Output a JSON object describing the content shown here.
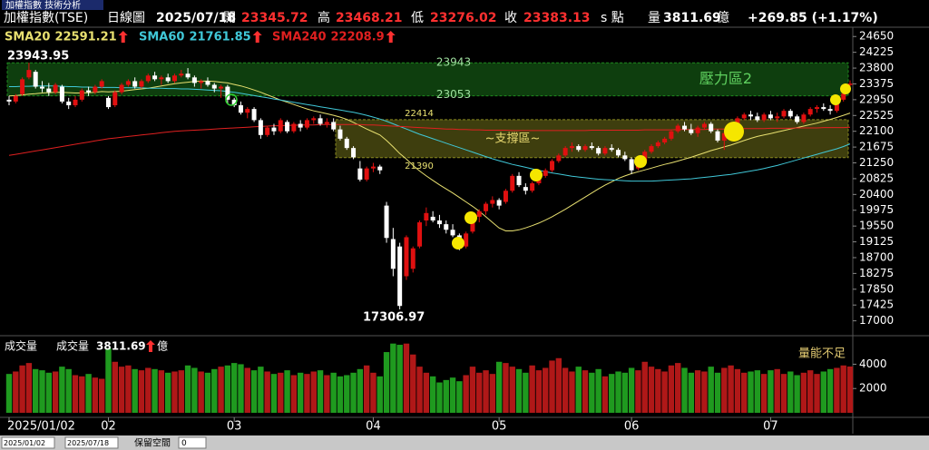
{
  "tab": "加權指數 技術分析",
  "toolbar": {
    "start": "2025/01/02",
    "end": "2025/07/18",
    "label": "保留空間",
    "value": 0
  },
  "chart_data": {
    "type": "candlestick",
    "title": "加權指數(TSE)",
    "period": "日線圖",
    "date": "2025/07/18",
    "header": {
      "open_label": "開",
      "high_label": "高",
      "low_label": "低",
      "close_label": "收",
      "unit": "s 點",
      "volume_label": "量",
      "change": "+269.85 (+1.17%)"
    },
    "up_color": "#e01010",
    "down_color": "#ffffff",
    "categories": [
      "2025/01/02",
      null,
      null,
      null,
      null,
      null,
      null,
      null,
      null,
      null,
      null,
      null,
      null,
      null,
      null,
      "02",
      null,
      null,
      null,
      null,
      null,
      null,
      null,
      null,
      null,
      null,
      null,
      null,
      null,
      null,
      null,
      null,
      null,
      null,
      "03",
      null,
      null,
      null,
      null,
      null,
      null,
      null,
      null,
      null,
      null,
      null,
      null,
      null,
      null,
      null,
      null,
      null,
      null,
      null,
      null,
      "04",
      null,
      null,
      null,
      null,
      null,
      null,
      null,
      null,
      null,
      null,
      null,
      null,
      null,
      null,
      null,
      null,
      null,
      null,
      "05",
      null,
      null,
      null,
      null,
      null,
      null,
      null,
      null,
      null,
      null,
      null,
      null,
      null,
      null,
      null,
      null,
      null,
      null,
      null,
      "06",
      null,
      null,
      null,
      null,
      null,
      null,
      null,
      null,
      null,
      null,
      null,
      null,
      null,
      null,
      null,
      null,
      null,
      null,
      null,
      null,
      "07",
      null,
      null,
      null,
      null,
      null,
      null,
      null,
      null,
      null,
      null,
      null,
      null
    ],
    "open": [
      22950,
      22900,
      23100,
      23550,
      23700,
      23300,
      23250,
      23150,
      23300,
      22900,
      22800,
      22950,
      23200,
      23150,
      23300,
      23000,
      22800,
      23150,
      23350,
      23450,
      23300,
      23450,
      23600,
      23500,
      23550,
      23450,
      23600,
      23650,
      23550,
      23400,
      23450,
      23350,
      23250,
      23300,
      22950,
      22800,
      22600,
      22700,
      22400,
      22000,
      22200,
      22100,
      22350,
      22100,
      22300,
      22200,
      22400,
      22450,
      22300,
      22350,
      22150,
      21900,
      21650,
      21100,
      20800,
      21100,
      21150,
      20100,
      19200,
      19000,
      18200,
      18400,
      19000,
      19700,
      19800,
      19700,
      19600,
      19450,
      19300,
      19000,
      19400,
      19800,
      19950,
      20150,
      20250,
      20200,
      20500,
      20900,
      20600,
      20500,
      20700,
      20900,
      21050,
      21300,
      21450,
      21650,
      21700,
      21600,
      21700,
      21650,
      21500,
      21650,
      21600,
      21450,
      21350,
      21100,
      21300,
      21550,
      21700,
      21800,
      21900,
      22100,
      22250,
      22150,
      22050,
      22200,
      22300,
      22100,
      21850,
      22050,
      22300,
      22450,
      22550,
      22500,
      22400,
      22550,
      22450,
      22500,
      22650,
      22500,
      22350,
      22550,
      22700,
      22750,
      22700,
      22650,
      22950,
      23345.72
    ],
    "high": [
      23050,
      23100,
      23550,
      23943.95,
      23750,
      23450,
      23400,
      23400,
      23350,
      23000,
      23050,
      23250,
      23300,
      23350,
      23500,
      23050,
      23200,
      23400,
      23500,
      23550,
      23500,
      23650,
      23700,
      23600,
      23650,
      23650,
      23750,
      23800,
      23600,
      23500,
      23550,
      23400,
      23350,
      23350,
      23000,
      22900,
      22750,
      22750,
      22450,
      22250,
      22300,
      22450,
      22400,
      22350,
      22400,
      22450,
      22500,
      22550,
      22450,
      22450,
      22250,
      21950,
      21700,
      21300,
      21150,
      21250,
      21200,
      20200,
      19500,
      19100,
      19300,
      19000,
      19700,
      20050,
      19950,
      19850,
      19700,
      19600,
      19350,
      19400,
      19850,
      20000,
      20200,
      20350,
      20300,
      20550,
      20950,
      21000,
      20700,
      20750,
      20950,
      21100,
      21350,
      21500,
      21700,
      21800,
      21750,
      21750,
      21800,
      21700,
      21700,
      21750,
      21650,
      21550,
      21400,
      21350,
      21600,
      21750,
      21850,
      21950,
      22150,
      22300,
      22350,
      22300,
      22250,
      22350,
      22350,
      22150,
      22100,
      22350,
      22500,
      22600,
      22650,
      22600,
      22600,
      22650,
      22600,
      22700,
      22700,
      22550,
      22600,
      22750,
      22800,
      22850,
      22800,
      22950,
      23150,
      23468.21
    ],
    "low": [
      22800,
      22850,
      23050,
      23500,
      23250,
      23150,
      23050,
      23100,
      22850,
      22700,
      22750,
      22900,
      23050,
      23100,
      23250,
      22700,
      22750,
      23100,
      23300,
      23250,
      23250,
      23400,
      23450,
      23350,
      23400,
      23400,
      23550,
      23500,
      23300,
      23250,
      23300,
      23150,
      23000,
      22850,
      22750,
      22550,
      22450,
      22350,
      21900,
      21950,
      22000,
      22050,
      22050,
      22050,
      22100,
      22150,
      22300,
      22250,
      22200,
      22100,
      21850,
      21600,
      21350,
      20750,
      20750,
      21000,
      20950,
      19100,
      18200,
      17306.97,
      18100,
      18300,
      18950,
      19550,
      19650,
      19500,
      19350,
      19250,
      18900,
      18950,
      19350,
      19650,
      19850,
      20050,
      20000,
      20150,
      20450,
      20600,
      20400,
      20450,
      20650,
      20850,
      21000,
      21250,
      21400,
      21550,
      21550,
      21550,
      21600,
      21450,
      21450,
      21550,
      21400,
      21300,
      20950,
      21050,
      21250,
      21500,
      21650,
      21750,
      21850,
      22050,
      22100,
      22000,
      21950,
      22150,
      22050,
      21800,
      21600,
      22000,
      22250,
      22400,
      22400,
      22350,
      22350,
      22400,
      22350,
      22450,
      22450,
      22300,
      22300,
      22500,
      22600,
      22650,
      22550,
      22600,
      22900,
      23276.02
    ],
    "close": [
      22900,
      23050,
      23500,
      23750,
      23300,
      23250,
      23150,
      23350,
      22900,
      22800,
      22950,
      23200,
      23150,
      23300,
      23450,
      22750,
      23150,
      23350,
      23450,
      23300,
      23450,
      23600,
      23500,
      23550,
      23450,
      23600,
      23650,
      23550,
      23400,
      23450,
      23350,
      23250,
      23300,
      22950,
      22800,
      22600,
      22700,
      22400,
      22000,
      22200,
      22100,
      22400,
      22100,
      22300,
      22200,
      22400,
      22450,
      22300,
      22350,
      22150,
      21900,
      21650,
      21400,
      20800,
      21100,
      21150,
      21050,
      19230,
      18400,
      17400,
      19250,
      18950,
      19650,
      19900,
      19700,
      19600,
      19450,
      19300,
      19000,
      19350,
      19800,
      19950,
      20150,
      20250,
      20100,
      20500,
      20900,
      20650,
      20500,
      20700,
      20900,
      21050,
      21300,
      21450,
      21650,
      21700,
      21600,
      21700,
      21650,
      21500,
      21650,
      21600,
      21450,
      21350,
      21050,
      21300,
      21550,
      21700,
      21800,
      21900,
      22100,
      22250,
      22150,
      22050,
      22200,
      22300,
      22100,
      21850,
      22050,
      22300,
      22450,
      22550,
      22500,
      22400,
      22550,
      22450,
      22500,
      22650,
      22500,
      22350,
      22550,
      22700,
      22750,
      22700,
      22650,
      22900,
      23113.28,
      23383.13
    ],
    "ylim": [
      16600,
      24900
    ],
    "yticks": [
      24650,
      24225,
      23800,
      23375,
      22950,
      22525,
      22100,
      21675,
      21250,
      20825,
      20400,
      19975,
      19550,
      19125,
      18700,
      18275,
      17850,
      17425,
      17000
    ],
    "moving_averages": [
      {
        "name": "SMA20",
        "color": "#e8e070",
        "values": [
          23050,
          23060,
          23080,
          23100,
          23110,
          23130,
          23140,
          23150,
          23150,
          23140,
          23130,
          23130,
          23140,
          23150,
          23170,
          23160,
          23170,
          23180,
          23200,
          23220,
          23240,
          23260,
          23290,
          23320,
          23350,
          23380,
          23400,
          23420,
          23440,
          23450,
          23450,
          23440,
          23420,
          23400,
          23360,
          23320,
          23270,
          23210,
          23150,
          23080,
          23010,
          22940,
          22880,
          22820,
          22760,
          22700,
          22650,
          22610,
          22570,
          22530,
          22480,
          22420,
          22340,
          22250,
          22160,
          22080,
          22000,
          21850,
          21680,
          21500,
          21350,
          21180,
          21030,
          20900,
          20780,
          20660,
          20550,
          20440,
          20320,
          20200,
          20080,
          19950,
          19800,
          19650,
          19500,
          19420,
          19420,
          19450,
          19500,
          19560,
          19630,
          19710,
          19800,
          19900,
          20000,
          20110,
          20220,
          20330,
          20440,
          20550,
          20650,
          20740,
          20830,
          20900,
          20960,
          21010,
          21060,
          21110,
          21160,
          21210,
          21250,
          21300,
          21350,
          21400,
          21460,
          21520,
          21580,
          21630,
          21680,
          21730,
          21790,
          21850,
          21910,
          21960,
          22000,
          22040,
          22080,
          22120,
          22160,
          22200,
          22240,
          22280,
          22320,
          22370,
          22420,
          22470,
          22530,
          22591.21
        ]
      },
      {
        "name": "SMA60",
        "color": "#40c8d8",
        "values": [
          23300,
          23300,
          23310,
          23310,
          23320,
          23320,
          23320,
          23320,
          23310,
          23300,
          23300,
          23290,
          23290,
          23280,
          23280,
          23280,
          23280,
          23270,
          23270,
          23270,
          23270,
          23260,
          23260,
          23260,
          23250,
          23250,
          23240,
          23240,
          23230,
          23220,
          23210,
          23200,
          23190,
          23170,
          23150,
          23120,
          23090,
          23060,
          23030,
          23000,
          22970,
          22940,
          22910,
          22880,
          22850,
          22820,
          22790,
          22760,
          22730,
          22700,
          22670,
          22640,
          22610,
          22570,
          22530,
          22480,
          22430,
          22370,
          22300,
          22230,
          22160,
          22090,
          22020,
          21960,
          21900,
          21840,
          21780,
          21720,
          21660,
          21600,
          21540,
          21480,
          21420,
          21360,
          21310,
          21260,
          21210,
          21170,
          21130,
          21090,
          21050,
          21010,
          20980,
          20950,
          20920,
          20890,
          20870,
          20850,
          20830,
          20810,
          20800,
          20790,
          20780,
          20770,
          20760,
          20760,
          20760,
          20760,
          20770,
          20780,
          20790,
          20800,
          20810,
          20820,
          20840,
          20860,
          20880,
          20900,
          20920,
          20940,
          20970,
          21000,
          21030,
          21060,
          21100,
          21140,
          21180,
          21230,
          21280,
          21330,
          21380,
          21430,
          21480,
          21530,
          21580,
          21630,
          21690,
          21761.85
        ]
      },
      {
        "name": "SMA240",
        "color": "#e02020",
        "values": [
          21450,
          21480,
          21510,
          21540,
          21570,
          21600,
          21630,
          21660,
          21690,
          21720,
          21750,
          21780,
          21810,
          21840,
          21870,
          21900,
          21920,
          21940,
          21960,
          21980,
          22000,
          22020,
          22040,
          22060,
          22080,
          22100,
          22110,
          22120,
          22130,
          22140,
          22150,
          22160,
          22170,
          22180,
          22190,
          22200,
          22210,
          22220,
          22230,
          22240,
          22250,
          22250,
          22260,
          22260,
          22270,
          22270,
          22270,
          22280,
          22280,
          22280,
          22280,
          22280,
          22280,
          22280,
          22270,
          22270,
          22260,
          22250,
          22240,
          22230,
          22220,
          22210,
          22200,
          22190,
          22180,
          22170,
          22160,
          22160,
          22150,
          22150,
          22140,
          22140,
          22130,
          22130,
          22130,
          22130,
          22120,
          22120,
          22120,
          22120,
          22120,
          22120,
          22120,
          22120,
          22120,
          22120,
          22120,
          22120,
          22130,
          22130,
          22130,
          22130,
          22130,
          22130,
          22130,
          22130,
          22140,
          22140,
          22140,
          22140,
          22140,
          22150,
          22150,
          22150,
          22150,
          22150,
          22160,
          22160,
          22160,
          22160,
          22170,
          22170,
          22170,
          22170,
          22170,
          22180,
          22180,
          22180,
          22180,
          22190,
          22190,
          22190,
          22190,
          22200,
          22200,
          22200,
          22200,
          22208.9
        ]
      }
    ],
    "zones": [
      {
        "name": "壓力區2",
        "high": 23943,
        "low": 23053,
        "color": "#1e8a1e"
      },
      {
        "name": "~支撐區~",
        "high": 22414,
        "low": 21390,
        "color": "#8a8a20"
      }
    ],
    "volume": {
      "title": "成交量",
      "name": "成交量",
      "unit": "億",
      "note": "量能不足",
      "up_color": "#b01818",
      "down_color": "#1f9a1f",
      "values": [
        3200,
        3400,
        3900,
        4100,
        3600,
        3500,
        3300,
        3400,
        3800,
        3600,
        3100,
        3000,
        3200,
        2900,
        2800,
        5300,
        4200,
        3800,
        3900,
        3600,
        3500,
        3700,
        3600,
        3500,
        3300,
        3400,
        3500,
        3900,
        3700,
        3400,
        3300,
        3600,
        3800,
        3900,
        4100,
        4000,
        3700,
        3500,
        3800,
        3400,
        3200,
        3300,
        3500,
        3100,
        3300,
        3200,
        3400,
        3500,
        3100,
        3300,
        3000,
        3100,
        3300,
        3600,
        3900,
        3300,
        3000,
        5000,
        5700,
        5600,
        5700,
        4800,
        3800,
        3300,
        3000,
        2500,
        2700,
        2900,
        2600,
        3100,
        3800,
        3300,
        3500,
        3200,
        4200,
        4100,
        3800,
        3600,
        3300,
        3900,
        3500,
        3700,
        4300,
        4500,
        3700,
        3400,
        3800,
        3500,
        3300,
        3600,
        3000,
        3200,
        3400,
        3300,
        3700,
        3500,
        4200,
        3800,
        3600,
        3400,
        3900,
        4100,
        3700,
        3300,
        3500,
        3400,
        3800,
        3300,
        3700,
        3900,
        3600,
        3300,
        3400,
        3500,
        3200,
        3500,
        3600,
        3200,
        3400,
        3100,
        3300,
        3500,
        3200,
        3400,
        3600,
        3700,
        3900,
        3811.69
      ],
      "ylim": [
        0,
        6200
      ],
      "yticks": [
        2000,
        4000
      ]
    }
  }
}
